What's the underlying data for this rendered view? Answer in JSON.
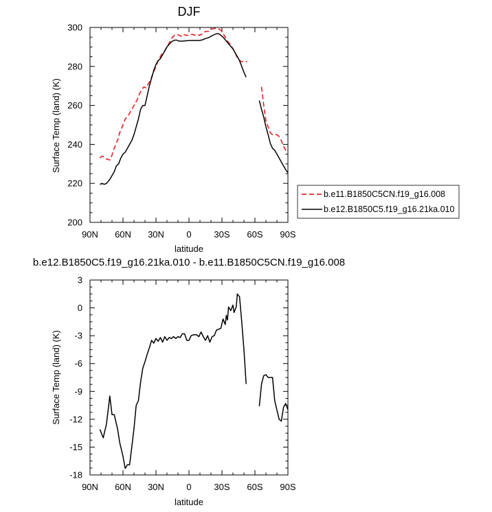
{
  "chart_data": [
    {
      "type": "line",
      "title": "DJF",
      "xlabel": "latitude",
      "ylabel": "Surface Temp (land) (K)",
      "xlim": [
        -90,
        90
      ],
      "ylim": [
        200,
        300
      ],
      "x_ticks": [
        -90,
        -60,
        -30,
        0,
        30,
        60,
        90
      ],
      "x_tick_labels": [
        "90N",
        "60N",
        "30N",
        "0",
        "30S",
        "60S",
        "90S"
      ],
      "y_ticks": [
        200,
        220,
        240,
        260,
        280,
        300
      ],
      "y_tick_labels": [
        "200",
        "220",
        "240",
        "260",
        "280",
        "300"
      ],
      "legend_position": "right",
      "series": [
        {
          "name": "b.e11.B1850C5CN.f19_g16.008",
          "color": "#e8262a",
          "dash": "dashed",
          "segments": [
            [
              [
                -81,
                233
              ],
              [
                -79,
                234
              ],
              [
                -77,
                233.5
              ],
              [
                -75,
                232.5
              ],
              [
                -72,
                232
              ],
              [
                -70,
                234.5
              ],
              [
                -68,
                238
              ],
              [
                -65,
                242
              ],
              [
                -63,
                246
              ],
              [
                -60,
                250
              ],
              [
                -58,
                253
              ],
              [
                -55,
                255
              ],
              [
                -52,
                258
              ],
              [
                -49,
                261
              ],
              [
                -47,
                263
              ],
              [
                -45,
                266
              ],
              [
                -43,
                268
              ],
              [
                -41,
                269.5
              ],
              [
                -39,
                269
              ],
              [
                -37,
                271
              ],
              [
                -35,
                273
              ],
              [
                -33,
                276
              ],
              [
                -30,
                280
              ],
              [
                -28,
                283
              ],
              [
                -25,
                286
              ],
              [
                -22,
                288
              ],
              [
                -19,
                291
              ],
              [
                -17,
                293
              ],
              [
                -15,
                295
              ],
              [
                -13,
                296
              ],
              [
                -11,
                296.5
              ],
              [
                -9,
                296
              ],
              [
                -7,
                295.5
              ],
              [
                -5,
                296.5
              ],
              [
                -3,
                296
              ],
              [
                0,
                296
              ],
              [
                3,
                296.5
              ],
              [
                5,
                296
              ],
              [
                7,
                296.5
              ],
              [
                10,
                296
              ],
              [
                13,
                297
              ],
              [
                15,
                298
              ],
              [
                18,
                298
              ],
              [
                20,
                299
              ],
              [
                23,
                299.5
              ],
              [
                25,
                299.5
              ],
              [
                28,
                299
              ],
              [
                30,
                298
              ],
              [
                32,
                296
              ],
              [
                35,
                293
              ],
              [
                38,
                291
              ],
              [
                40,
                289
              ],
              [
                42,
                287
              ],
              [
                44,
                284.5
              ],
              [
                46,
                283
              ],
              [
                48,
                282.5
              ],
              [
                51,
                282.5
              ],
              [
                53,
                282.5
              ]
            ],
            [
              [
                66,
                269.5
              ],
              [
                68,
                260
              ],
              [
                70,
                252
              ],
              [
                72,
                249
              ],
              [
                74,
                246
              ],
              [
                76,
                245
              ],
              [
                78,
                245
              ],
              [
                80,
                245
              ],
              [
                82,
                244
              ],
              [
                84,
                242
              ],
              [
                86,
                239
              ],
              [
                88,
                237
              ],
              [
                90,
                236.5
              ]
            ]
          ]
        },
        {
          "name": "b.e12.B1850C5.f19_g16.21ka.010",
          "color": "#000000",
          "dash": "solid",
          "segments": [
            [
              [
                -81,
                219.5
              ],
              [
                -79,
                220
              ],
              [
                -77,
                219.5
              ],
              [
                -75,
                220
              ],
              [
                -72,
                222
              ],
              [
                -70,
                224
              ],
              [
                -68,
                226
              ],
              [
                -66,
                229
              ],
              [
                -64,
                230
              ],
              [
                -62,
                233
              ],
              [
                -60,
                235
              ],
              [
                -58,
                236
              ],
              [
                -56,
                238
              ],
              [
                -54,
                240
              ],
              [
                -52,
                242
              ],
              [
                -50,
                245
              ],
              [
                -48,
                249
              ],
              [
                -46,
                253
              ],
              [
                -44,
                258
              ],
              [
                -42,
                260
              ],
              [
                -40,
                260
              ],
              [
                -38,
                265
              ],
              [
                -36,
                270
              ],
              [
                -34,
                274
              ],
              [
                -32,
                278
              ],
              [
                -30,
                281
              ],
              [
                -28,
                283
              ],
              [
                -26,
                284
              ],
              [
                -24,
                286
              ],
              [
                -22,
                288
              ],
              [
                -20,
                290
              ],
              [
                -17,
                292
              ],
              [
                -15,
                293
              ],
              [
                -13,
                293.5
              ],
              [
                -11,
                293.5
              ],
              [
                -9,
                293
              ],
              [
                -7,
                293
              ],
              [
                -5,
                293
              ],
              [
                -2,
                293.2
              ],
              [
                0,
                293.3
              ],
              [
                3,
                293.3
              ],
              [
                6,
                293.3
              ],
              [
                9,
                293.3
              ],
              [
                12,
                293.6
              ],
              [
                15,
                294.3
              ],
              [
                18,
                294.8
              ],
              [
                20,
                295.5
              ],
              [
                23,
                296.3
              ],
              [
                25,
                296.8
              ],
              [
                27,
                296.8
              ],
              [
                29,
                296
              ],
              [
                31,
                295
              ],
              [
                34,
                293
              ],
              [
                37,
                291
              ],
              [
                40,
                289
              ],
              [
                42,
                287
              ],
              [
                44,
                285
              ],
              [
                46,
                283
              ],
              [
                48,
                280
              ],
              [
                50,
                277
              ],
              [
                52,
                274.5
              ]
            ],
            [
              [
                64,
                262.5
              ],
              [
                66,
                258
              ],
              [
                68,
                254
              ],
              [
                70,
                249
              ],
              [
                72,
                245
              ],
              [
                74,
                240.5
              ],
              [
                76,
                238
              ],
              [
                78,
                237
              ],
              [
                80,
                235
              ],
              [
                82,
                233
              ],
              [
                84,
                231
              ],
              [
                86,
                229
              ],
              [
                88,
                227
              ],
              [
                90,
                225.5
              ]
            ]
          ]
        }
      ]
    },
    {
      "type": "line",
      "title": "b.e12.B1850C5.f19_g16.21ka.010 - b.e11.B1850C5CN.f19_g16.008",
      "xlabel": "latitude",
      "ylabel": "Surface Temp (land) (K)",
      "xlim": [
        -90,
        90
      ],
      "ylim": [
        -18,
        3
      ],
      "x_ticks": [
        -90,
        -60,
        -30,
        0,
        30,
        60,
        90
      ],
      "x_tick_labels": [
        "90N",
        "60N",
        "30N",
        "0",
        "30S",
        "60S",
        "90S"
      ],
      "y_ticks": [
        -18,
        -15,
        -12,
        -9,
        -6,
        -3,
        0,
        3
      ],
      "y_tick_labels": [
        "-18",
        "-15",
        "-12",
        "-9",
        "-6",
        "-3",
        "0",
        "3"
      ],
      "series": [
        {
          "color": "#000000",
          "dash": "solid",
          "segments": [
            [
              [
                -81,
                -13.1
              ],
              [
                -78,
                -14
              ],
              [
                -75,
                -12.5
              ],
              [
                -72,
                -9.5
              ],
              [
                -70,
                -11.5
              ],
              [
                -68,
                -11.5
              ],
              [
                -65,
                -13
              ],
              [
                -63,
                -14.5
              ],
              [
                -60,
                -16
              ],
              [
                -58,
                -17.3
              ],
              [
                -56,
                -16.9
              ],
              [
                -54,
                -16.9
              ],
              [
                -52,
                -15
              ],
              [
                -50,
                -13
              ],
              [
                -48,
                -10.5
              ],
              [
                -46,
                -10
              ],
              [
                -44,
                -8
              ],
              [
                -42,
                -6.5
              ],
              [
                -40,
                -5.8
              ],
              [
                -38,
                -5
              ],
              [
                -36,
                -4.3
              ],
              [
                -34,
                -3.5
              ],
              [
                -32,
                -3.8
              ],
              [
                -30,
                -3.3
              ],
              [
                -28,
                -3.6
              ],
              [
                -26,
                -3.2
              ],
              [
                -24,
                -3.7
              ],
              [
                -22,
                -3.1
              ],
              [
                -20,
                -3.5
              ],
              [
                -18,
                -3.2
              ],
              [
                -16,
                -3.3
              ],
              [
                -14,
                -3.1
              ],
              [
                -12,
                -3.3
              ],
              [
                -10,
                -3.1
              ],
              [
                -8,
                -3.2
              ],
              [
                -6,
                -2.8
              ],
              [
                -4,
                -2.8
              ],
              [
                -2,
                -3.5
              ],
              [
                0,
                -3.5
              ],
              [
                2,
                -3
              ],
              [
                4,
                -2.9
              ],
              [
                7,
                -2.9
              ],
              [
                9,
                -3.1
              ],
              [
                11,
                -2.6
              ],
              [
                13,
                -3.1
              ],
              [
                15,
                -3.5
              ],
              [
                17,
                -3
              ],
              [
                19,
                -3.7
              ],
              [
                21,
                -3.1
              ],
              [
                23,
                -3
              ],
              [
                25,
                -2.4
              ],
              [
                27,
                -2.3
              ],
              [
                29,
                -2.2
              ],
              [
                31,
                -1.2
              ],
              [
                33,
                -1.8
              ],
              [
                34,
                -0.8
              ],
              [
                35,
                -1.3
              ],
              [
                36,
                0.1
              ],
              [
                38,
                -0.3
              ],
              [
                40,
                0.3
              ],
              [
                41,
                -0.5
              ],
              [
                43,
                0.1
              ],
              [
                44,
                1.5
              ],
              [
                46,
                1.2
              ],
              [
                48,
                -1.5
              ],
              [
                50,
                -4.5
              ],
              [
                52,
                -8.2
              ]
            ],
            [
              [
                64,
                -10.6
              ],
              [
                66,
                -8.2
              ],
              [
                68,
                -7.3
              ],
              [
                70,
                -7.2
              ],
              [
                72,
                -7.5
              ],
              [
                74,
                -7.5
              ],
              [
                76,
                -7.5
              ],
              [
                78,
                -10
              ],
              [
                80,
                -11
              ],
              [
                82,
                -12
              ],
              [
                84,
                -12.2
              ],
              [
                86,
                -10.7
              ],
              [
                88,
                -10.3
              ],
              [
                90,
                -11
              ]
            ]
          ]
        }
      ]
    }
  ]
}
